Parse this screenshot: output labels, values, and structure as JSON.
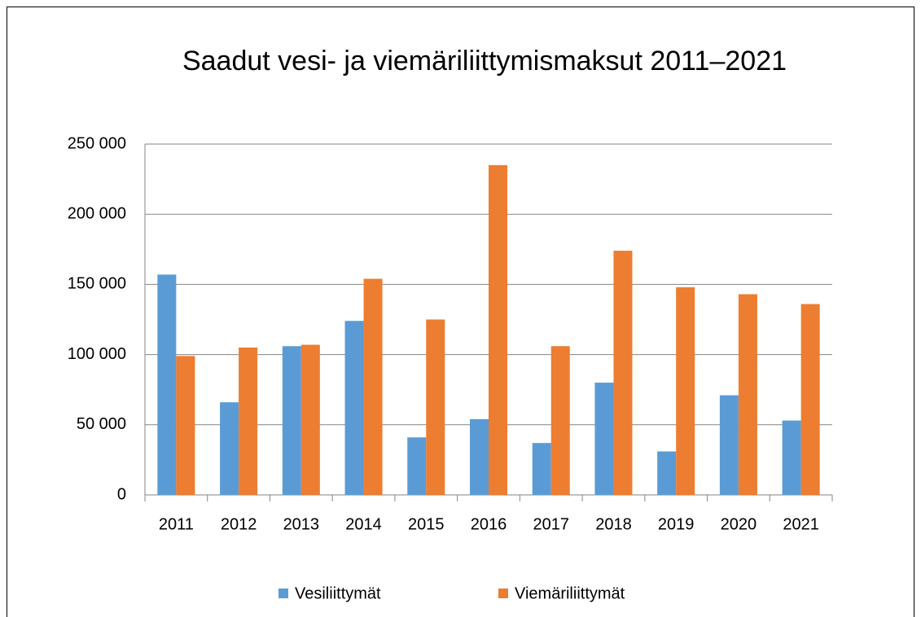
{
  "chart_data": {
    "type": "bar",
    "title": "Saadut vesi- ja viemäriliittymismaksut 2011–2021",
    "categories": [
      "2011",
      "2012",
      "2013",
      "2014",
      "2015",
      "2016",
      "2017",
      "2018",
      "2019",
      "2020",
      "2021"
    ],
    "series": [
      {
        "name": "Vesiliittymät",
        "color": "#5b9bd5",
        "values": [
          157000,
          66000,
          106000,
          124000,
          41000,
          54000,
          37000,
          80000,
          31000,
          71000,
          53000
        ]
      },
      {
        "name": "Viemäriliittymät",
        "color": "#ed7d31",
        "values": [
          99000,
          105000,
          107000,
          154000,
          125000,
          235000,
          106000,
          174000,
          148000,
          143000,
          136000
        ]
      }
    ],
    "ylim": [
      0,
      250000
    ],
    "yticks": [
      0,
      {
        "value": 50000,
        "label": "50 000"
      },
      {
        "value": 100000,
        "label": "100 000"
      },
      {
        "value": 150000,
        "label": "150 000"
      },
      {
        "value": 200000,
        "label": "200 000"
      },
      {
        "value": 250000,
        "label": "250 000"
      }
    ],
    "grid": true,
    "legend": "bottom"
  }
}
